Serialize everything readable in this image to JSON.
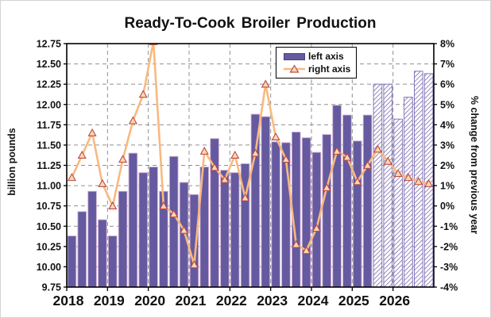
{
  "title": "Ready-To-Cook Broiler Production",
  "legend": {
    "left_label": "left axis",
    "right_label": "right axis"
  },
  "colors": {
    "bar_fill": "#655AA0",
    "bar_edge": "#cfaed0",
    "hatch_stripe": "#8273B4",
    "hatch_edge": "#7b6cb0",
    "line_color": "#F9B97F",
    "marker_fill": "#FCD9AE",
    "marker_edge": "#B94A48",
    "grid_color": "#909090",
    "frame_color": "#000000",
    "text_color": "#111111"
  },
  "chart_data": {
    "type": "bar",
    "title": "Ready-To-Cook Broiler Production",
    "categories": [
      "2018 Q1",
      "2018 Q2",
      "2018 Q3",
      "2018 Q4",
      "2019 Q1",
      "2019 Q2",
      "2019 Q3",
      "2019 Q4",
      "2020 Q1",
      "2020 Q2",
      "2020 Q3",
      "2020 Q4",
      "2021 Q1",
      "2021 Q2",
      "2021 Q3",
      "2021 Q4",
      "2022 Q1",
      "2022 Q2",
      "2022 Q3",
      "2022 Q4",
      "2023 Q1",
      "2023 Q2",
      "2023 Q3",
      "2023 Q4",
      "2024 Q1",
      "2024 Q2",
      "2024 Q3",
      "2024 Q4",
      "2025 Q1",
      "2025 Q2",
      "2025 Q3",
      "2025 Q4",
      "2026 Q1",
      "2026 Q2",
      "2026 Q3",
      "2026 Q4"
    ],
    "series": [
      {
        "name": "left axis",
        "type": "bar",
        "axis": "left",
        "unit": "billion pounds",
        "values": [
          10.38,
          10.68,
          10.93,
          10.58,
          10.38,
          10.93,
          11.4,
          11.16,
          11.23,
          10.93,
          11.36,
          11.04,
          10.89,
          11.23,
          11.58,
          11.19,
          11.16,
          11.27,
          11.88,
          11.85,
          11.54,
          11.53,
          11.66,
          11.59,
          11.41,
          11.63,
          11.99,
          11.87,
          11.55,
          11.87,
          12.25,
          12.25,
          11.82,
          12.09,
          12.41,
          12.38
        ],
        "hatched_forecast_from_index": 30
      },
      {
        "name": "right axis",
        "type": "line",
        "axis": "right",
        "unit": "% change from previous year",
        "values": [
          1.4,
          2.5,
          3.6,
          1.1,
          0.0,
          2.3,
          4.2,
          5.5,
          8.1,
          0.0,
          -0.4,
          -1.2,
          -2.9,
          2.7,
          1.9,
          1.3,
          2.5,
          0.4,
          2.6,
          6.0,
          3.4,
          2.3,
          -1.9,
          -2.2,
          -1.1,
          0.9,
          2.7,
          2.4,
          1.2,
          2.0,
          2.8,
          2.2,
          1.6,
          1.4,
          1.2,
          1.1
        ]
      }
    ],
    "x_tick_labels": [
      "2018",
      "2019",
      "2020",
      "2021",
      "2022",
      "2023",
      "2024",
      "2025",
      "2026"
    ],
    "left_axis": {
      "label": "billion pounds",
      "min": 9.75,
      "max": 12.75,
      "step": 0.25,
      "tick_labels": [
        "9.75",
        "10.00",
        "10.25",
        "10.50",
        "10.75",
        "11.00",
        "11.25",
        "11.50",
        "11.75",
        "12.00",
        "12.25",
        "12.50",
        "12.75"
      ]
    },
    "right_axis": {
      "label": "% change from previous year",
      "min": -4,
      "max": 8,
      "step": 1,
      "tick_labels": [
        "-4%",
        "-3%",
        "-2%",
        "-1%",
        "0%",
        "1%",
        "2%",
        "3%",
        "4%",
        "5%",
        "6%",
        "7%",
        "8%"
      ]
    },
    "grid": "dashed",
    "legend_position": "top-center-inside"
  }
}
